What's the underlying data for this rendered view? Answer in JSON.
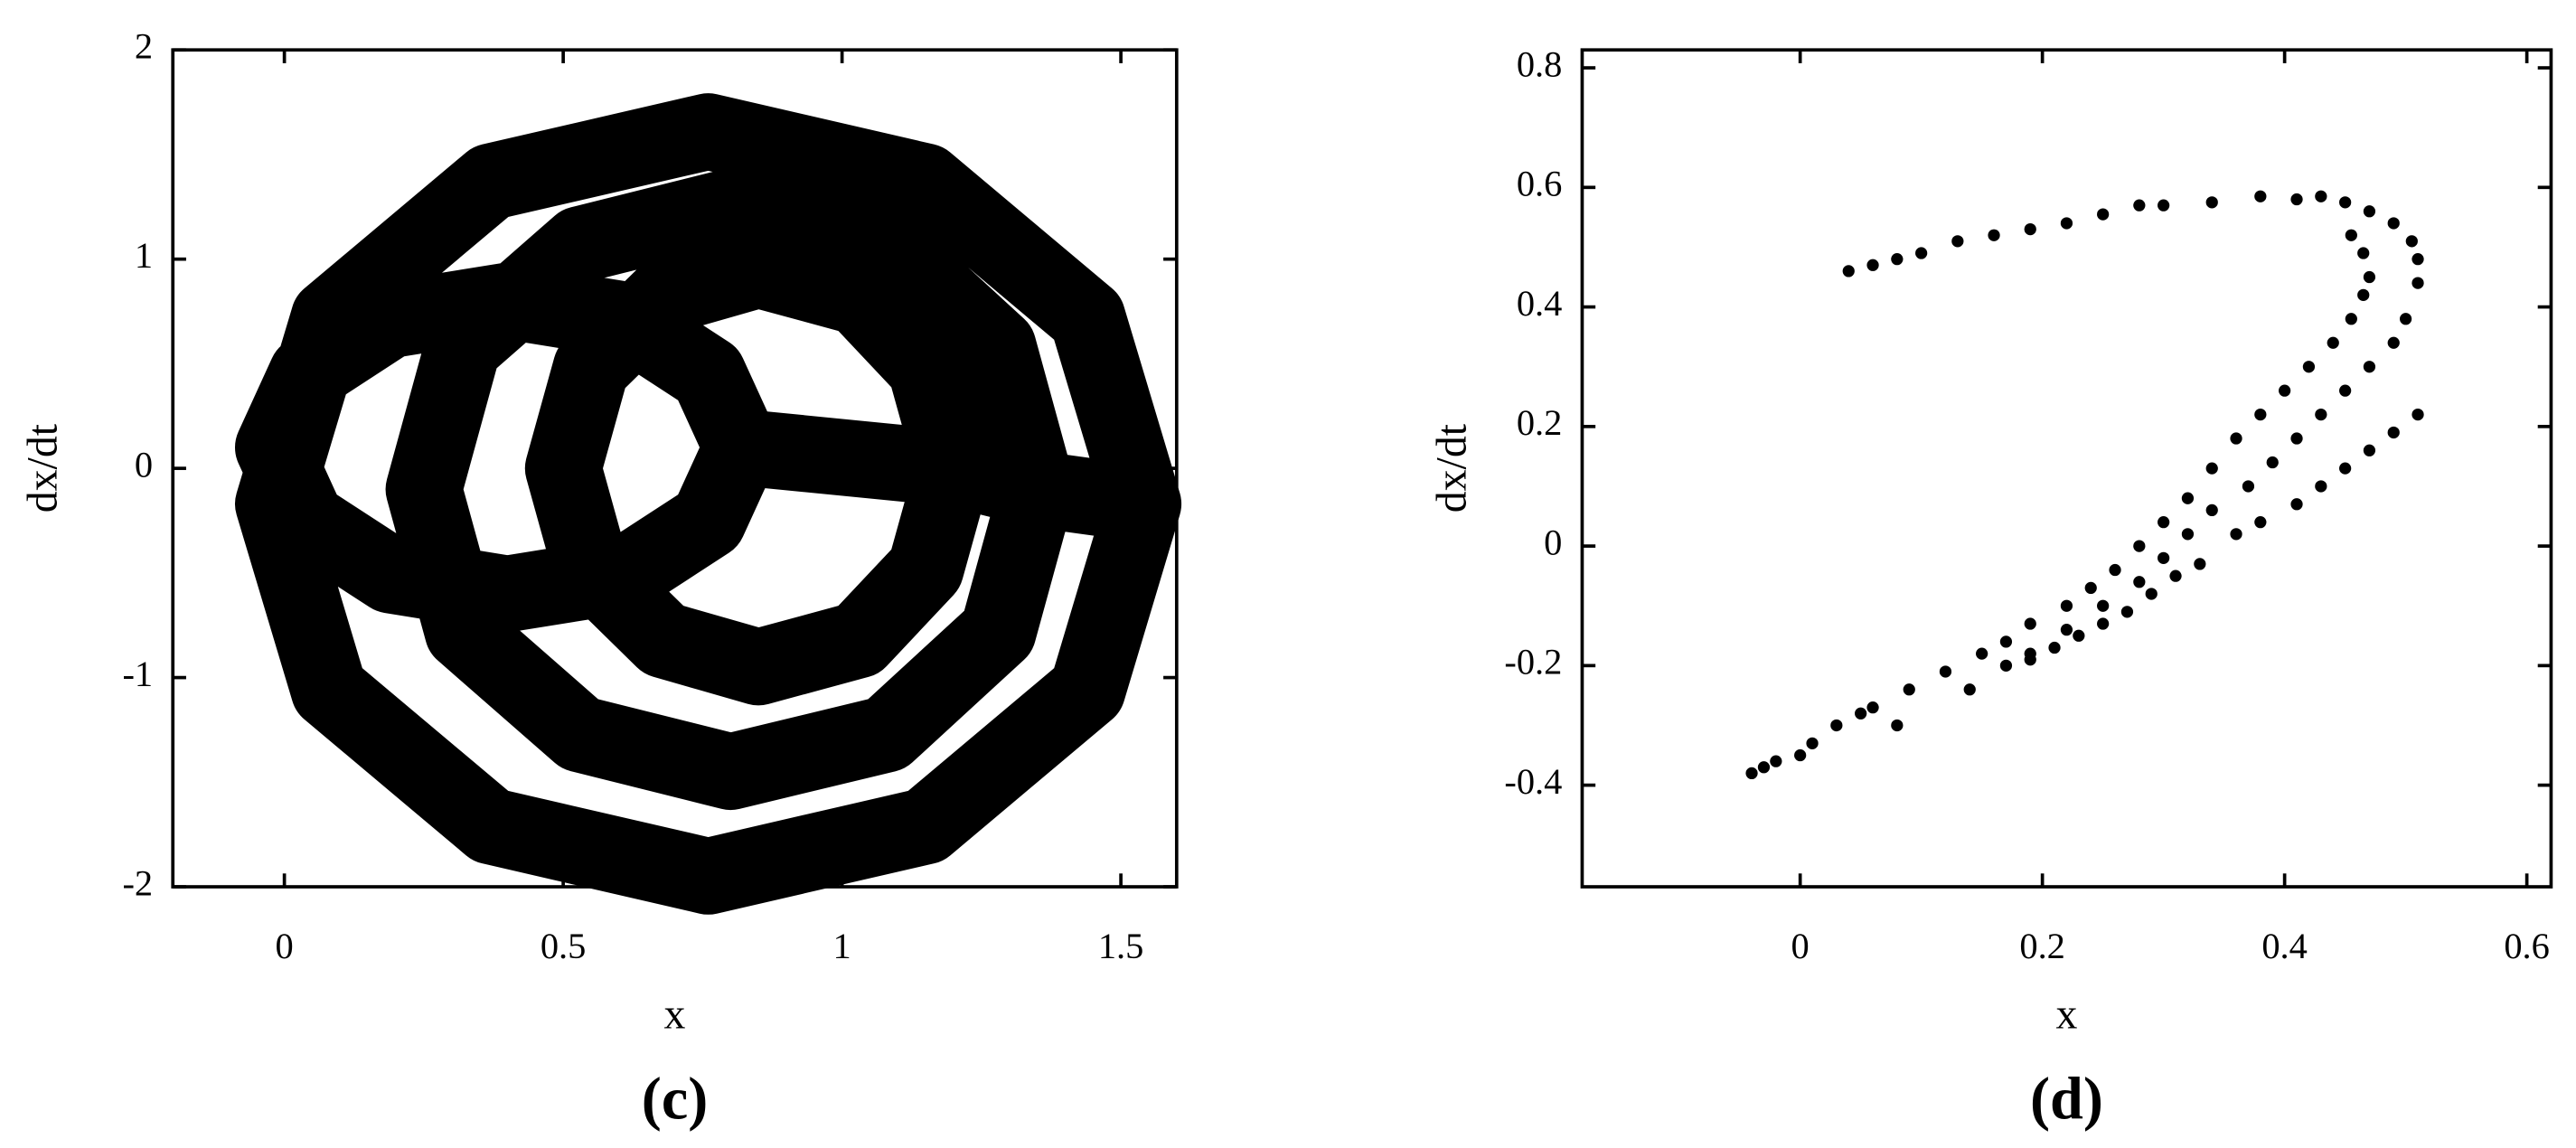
{
  "chart_data": [
    {
      "type": "line",
      "caption": "(c)",
      "x_label": "x",
      "y_label": "dx/dt",
      "color": "#000000",
      "xlim": [
        -0.2,
        1.6
      ],
      "ylim": [
        -2,
        2
      ],
      "xticks": [
        0,
        0.5,
        1,
        1.5
      ],
      "yticks": [
        -2,
        -1,
        0,
        1,
        2
      ],
      "x": [
        1.54,
        1.44,
        1.15,
        0.76,
        0.37,
        0.08,
        -0.02,
        0.08,
        0.37,
        0.76,
        1.15,
        1.44,
        1.54,
        1.35,
        1.28,
        1.08,
        0.8,
        0.53,
        0.32,
        0.25,
        0.32,
        0.53,
        0.8,
        1.08,
        1.28,
        1.35,
        1.2,
        1.15,
        1.03,
        0.85,
        0.68,
        0.55,
        0.5,
        0.55,
        0.68,
        0.85,
        1.03,
        1.15,
        1.2,
        0.82,
        0.76,
        0.61,
        0.4,
        0.19,
        0.04,
        -0.02,
        0.04,
        0.19,
        0.4,
        0.61,
        0.76,
        0.82
      ],
      "y": [
        -0.17,
        0.72,
        1.37,
        1.61,
        1.37,
        0.72,
        -0.17,
        -1.06,
        -1.71,
        -1.95,
        -1.71,
        -1.06,
        -0.17,
        -0.1,
        0.58,
        1.07,
        1.25,
        1.07,
        0.58,
        -0.1,
        -0.78,
        -1.27,
        -1.45,
        -1.27,
        -0.78,
        -0.1,
        0,
        0.48,
        0.82,
        0.95,
        0.82,
        0.48,
        0,
        -0.48,
        -0.82,
        -0.95,
        -0.82,
        -0.48,
        0,
        0.1,
        0.45,
        0.71,
        0.8,
        0.71,
        0.45,
        0.1,
        -0.25,
        -0.51,
        -0.6,
        -0.51,
        -0.25,
        0.1
      ]
    },
    {
      "type": "scatter",
      "caption": "(d)",
      "x_label": "x",
      "y_label": "dx/dt",
      "color": "#000000",
      "xlim": [
        -0.18,
        0.62
      ],
      "ylim": [
        -0.57,
        0.83
      ],
      "xticks": [
        0,
        0.2,
        0.4,
        0.6
      ],
      "yticks": [
        -0.4,
        -0.2,
        0,
        0.2,
        0.4,
        0.6,
        0.8
      ],
      "x": [
        0.04,
        0.06,
        0.08,
        0.1,
        0.13,
        0.16,
        0.19,
        0.22,
        0.25,
        0.28,
        0.3,
        0.34,
        0.38,
        0.41,
        0.43,
        0.45,
        0.47,
        0.49,
        0.505,
        0.51,
        0.51,
        0.455,
        0.465,
        0.47,
        0.465,
        0.455,
        0.44,
        0.42,
        0.4,
        0.38,
        0.36,
        0.34,
        0.32,
        0.3,
        0.28,
        0.26,
        0.24,
        0.22,
        0.19,
        0.17,
        0.15,
        0.12,
        0.09,
        0.06,
        0.03,
        0.01,
        -0.02,
        -0.04,
        0.5,
        0.49,
        0.47,
        0.45,
        0.43,
        0.41,
        0.39,
        0.37,
        0.34,
        0.32,
        0.3,
        0.28,
        0.25,
        0.22,
        0.19,
        0.17,
        0.51,
        0.49,
        0.47,
        0.45,
        0.43,
        0.41,
        0.38,
        0.36,
        0.33,
        0.31,
        0.29,
        0.27,
        0.25,
        0.23,
        0.21,
        0.19,
        0.14,
        0.08,
        0.05,
        0,
        -0.03
      ],
      "y": [
        0.46,
        0.47,
        0.48,
        0.49,
        0.51,
        0.52,
        0.53,
        0.54,
        0.555,
        0.57,
        0.57,
        0.575,
        0.585,
        0.58,
        0.585,
        0.575,
        0.56,
        0.54,
        0.51,
        0.48,
        0.44,
        0.52,
        0.49,
        0.45,
        0.42,
        0.38,
        0.34,
        0.3,
        0.26,
        0.22,
        0.18,
        0.13,
        0.08,
        0.04,
        0,
        -0.04,
        -0.07,
        -0.1,
        -0.13,
        -0.16,
        -0.18,
        -0.21,
        -0.24,
        -0.27,
        -0.3,
        -0.33,
        -0.36,
        -0.38,
        0.38,
        0.34,
        0.3,
        0.26,
        0.22,
        0.18,
        0.14,
        0.1,
        0.06,
        0.02,
        -0.02,
        -0.06,
        -0.1,
        -0.14,
        -0.18,
        -0.2,
        0.22,
        0.19,
        0.16,
        0.13,
        0.1,
        0.07,
        0.04,
        0.02,
        -0.03,
        -0.05,
        -0.08,
        -0.11,
        -0.13,
        -0.15,
        -0.17,
        -0.19,
        -0.24,
        -0.3,
        -0.28,
        -0.35,
        -0.37
      ]
    }
  ]
}
